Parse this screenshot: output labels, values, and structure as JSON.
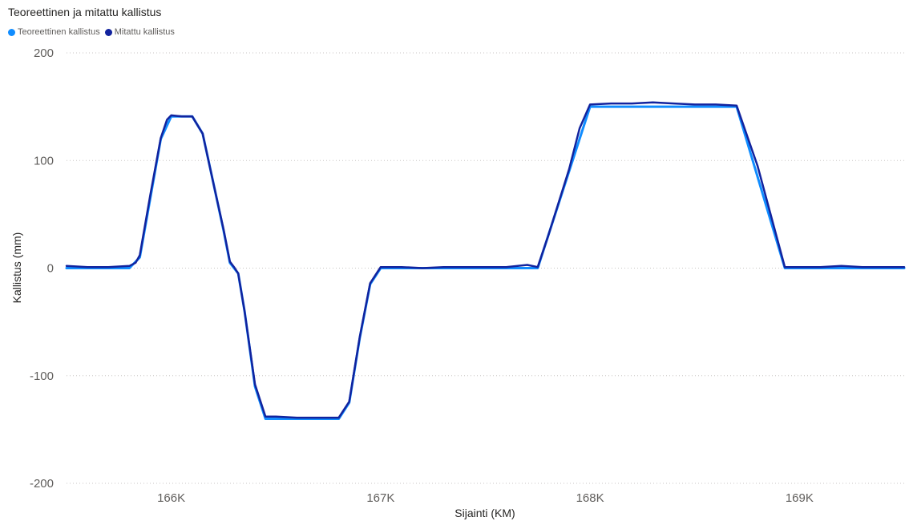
{
  "chart_data": {
    "type": "line",
    "title": "Teoreettinen ja mitattu kallistus",
    "xlabel": "Sijainti (KM)",
    "ylabel": "Kallistus (mm)",
    "xlim": [
      165500,
      169500
    ],
    "ylim": [
      -200,
      200
    ],
    "x_ticks": [
      166000,
      167000,
      168000,
      169000
    ],
    "x_tick_labels": [
      "166K",
      "167K",
      "168K",
      "169K"
    ],
    "y_ticks": [
      -200,
      -100,
      0,
      100,
      200
    ],
    "y_tick_labels": [
      "-200",
      "-100",
      "0",
      "100",
      "200"
    ],
    "grid": "horizontal-dotted",
    "legend_position": "top-left",
    "series": [
      {
        "name": "Teoreettinen kallistus",
        "color": "#118dff",
        "points": [
          [
            165500,
            0
          ],
          [
            165800,
            0
          ],
          [
            165850,
            10
          ],
          [
            165900,
            65
          ],
          [
            165950,
            120
          ],
          [
            166000,
            141
          ],
          [
            166100,
            141
          ],
          [
            166150,
            125
          ],
          [
            166200,
            80
          ],
          [
            166250,
            35
          ],
          [
            166280,
            5
          ],
          [
            166300,
            0
          ],
          [
            166320,
            -5
          ],
          [
            166350,
            -40
          ],
          [
            166400,
            -110
          ],
          [
            166450,
            -140
          ],
          [
            166800,
            -140
          ],
          [
            166850,
            -125
          ],
          [
            166900,
            -65
          ],
          [
            166950,
            -15
          ],
          [
            167000,
            0
          ],
          [
            167750,
            0
          ],
          [
            168000,
            150
          ],
          [
            168700,
            150
          ],
          [
            168930,
            0
          ],
          [
            169500,
            0
          ]
        ]
      },
      {
        "name": "Mitattu kallistus",
        "color": "#12239e",
        "points": [
          [
            165500,
            2
          ],
          [
            165600,
            1
          ],
          [
            165700,
            1
          ],
          [
            165800,
            2
          ],
          [
            165830,
            5
          ],
          [
            165850,
            12
          ],
          [
            165900,
            68
          ],
          [
            165950,
            121
          ],
          [
            165980,
            138
          ],
          [
            166000,
            142
          ],
          [
            166050,
            141
          ],
          [
            166100,
            141
          ],
          [
            166150,
            125
          ],
          [
            166200,
            80
          ],
          [
            166250,
            36
          ],
          [
            166280,
            6
          ],
          [
            166300,
            1
          ],
          [
            166320,
            -5
          ],
          [
            166350,
            -40
          ],
          [
            166400,
            -108
          ],
          [
            166450,
            -138
          ],
          [
            166500,
            -138
          ],
          [
            166600,
            -139
          ],
          [
            166700,
            -139
          ],
          [
            166800,
            -139
          ],
          [
            166850,
            -124
          ],
          [
            166900,
            -64
          ],
          [
            166950,
            -14
          ],
          [
            167000,
            1
          ],
          [
            167100,
            1
          ],
          [
            167200,
            0
          ],
          [
            167300,
            1
          ],
          [
            167400,
            1
          ],
          [
            167500,
            1
          ],
          [
            167600,
            1
          ],
          [
            167700,
            3
          ],
          [
            167750,
            1
          ],
          [
            167800,
            30
          ],
          [
            167900,
            92
          ],
          [
            167950,
            130
          ],
          [
            168000,
            152
          ],
          [
            168100,
            153
          ],
          [
            168200,
            153
          ],
          [
            168300,
            154
          ],
          [
            168400,
            153
          ],
          [
            168500,
            152
          ],
          [
            168600,
            152
          ],
          [
            168700,
            151
          ],
          [
            168800,
            95
          ],
          [
            168930,
            1
          ],
          [
            169000,
            1
          ],
          [
            169100,
            1
          ],
          [
            169200,
            2
          ],
          [
            169300,
            1
          ],
          [
            169400,
            1
          ],
          [
            169500,
            1
          ]
        ]
      }
    ]
  }
}
